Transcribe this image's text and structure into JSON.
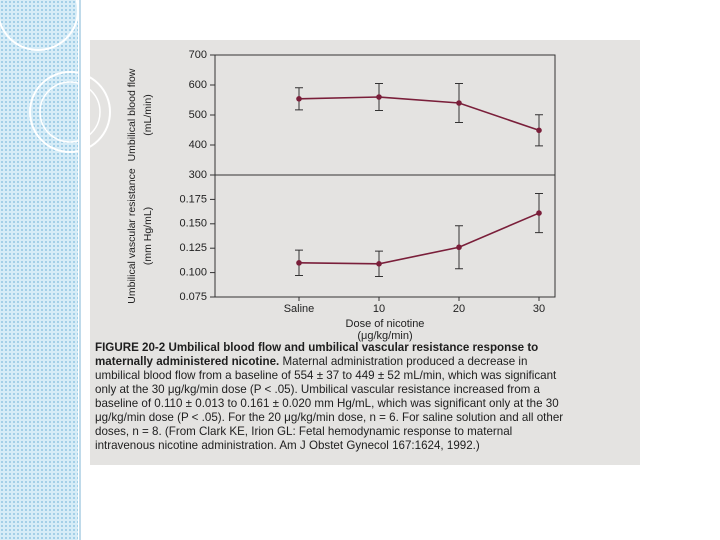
{
  "chart_data": [
    {
      "type": "line",
      "y_label": [
        "Umbilical blood flow",
        "(mL/min)"
      ],
      "values": [
        554,
        560,
        540,
        449
      ],
      "errors": [
        37,
        45,
        65,
        52
      ],
      "color": "#7a1f3a",
      "ylim": [
        300,
        700
      ],
      "yticks": [
        300,
        400,
        500,
        600,
        700
      ]
    },
    {
      "type": "line",
      "y_label": [
        "Umbilical vascular resistance",
        "(mm Hg/mL)"
      ],
      "x_label": [
        "Dose of nicotine",
        "(μg/kg/min)"
      ],
      "categories": [
        "Saline",
        "10",
        "20",
        "30"
      ],
      "values": [
        0.11,
        0.109,
        0.126,
        0.161
      ],
      "errors": [
        0.013,
        0.013,
        0.022,
        0.02
      ],
      "color": "#7a1f3a",
      "ylim": [
        0.075,
        0.2
      ],
      "yticks": [
        0.075,
        {
          "value": 0.1,
          "label": "0.100"
        },
        0.125,
        {
          "value": 0.15,
          "label": "0.150"
        },
        0.175
      ]
    }
  ],
  "caption": {
    "heading": "FIGURE 20-2 Umbilical blood flow and umbilical vascular resistance response to maternally administered nicotine.",
    "body": "Maternal administration produced a decrease in umbilical blood flow from a baseline of 554 ± 37 to 449 ± 52 mL/min, which was significant only at the 30 μg/kg/min dose (P < .05). Umbilical vascular resistance increased from a baseline of 0.110 ± 0.013 to 0.161 ± 0.020 mm Hg/mL, which was significant only at the 30 μg/kg/min dose (P < .05). For the 20 μg/kg/min dose, n = 6. For saline solution and all other doses, n = 8. (From Clark KE, Irion GL: Fetal hemodynamic response to maternal intravenous nicotine administration. Am J Obstet Gynecol 167:1624, 1992.)"
  }
}
